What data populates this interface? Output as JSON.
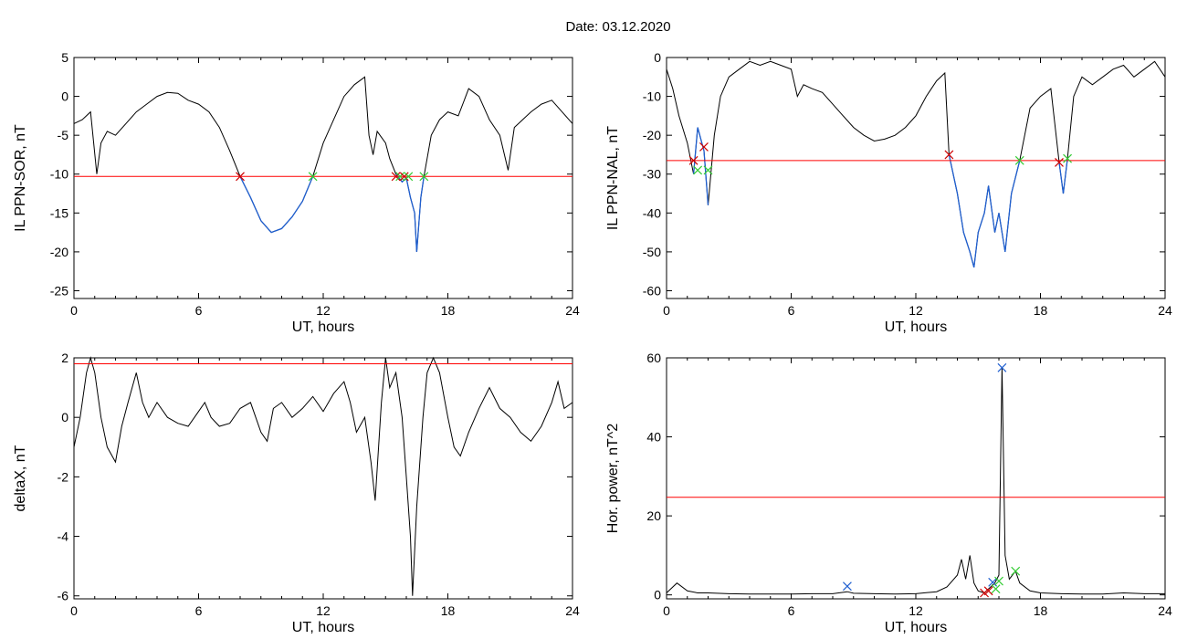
{
  "header": {
    "date_label": "Date:  03.12.2020"
  },
  "colors": {
    "trace": "#000000",
    "threshold": "#ff0000",
    "highlight": "#1f5fd0",
    "marker_start": "#cc0000",
    "marker_end": "#33cc33",
    "marker_peak": "#1f5fd0"
  },
  "chart_data": [
    {
      "type": "line",
      "xlabel": "UT, hours",
      "ylabel": "IL PPN-SOR, nT",
      "xlim": [
        0,
        24
      ],
      "ylim": [
        -26,
        5
      ],
      "xticks": [
        "0",
        "6",
        "12",
        "18",
        "24"
      ],
      "yticks": [
        "5",
        "0",
        "-5",
        "-10",
        "-15",
        "-20",
        "-25"
      ],
      "threshold": -10.3,
      "series": [
        {
          "points": [
            [
              0,
              -3.5
            ],
            [
              0.4,
              -3
            ],
            [
              0.8,
              -2
            ],
            [
              1.1,
              -10
            ],
            [
              1.3,
              -6
            ],
            [
              1.6,
              -4.5
            ],
            [
              2.0,
              -5
            ],
            [
              2.5,
              -3.5
            ],
            [
              3.0,
              -2
            ],
            [
              3.5,
              -1
            ],
            [
              4.0,
              0
            ],
            [
              4.5,
              0.5
            ],
            [
              5.0,
              0.4
            ],
            [
              5.5,
              -0.5
            ],
            [
              6.0,
              -1
            ],
            [
              6.5,
              -2
            ],
            [
              7.0,
              -4
            ],
            [
              7.5,
              -7
            ],
            [
              8.0,
              -10.3
            ],
            [
              8.5,
              -13
            ],
            [
              9.0,
              -16
            ],
            [
              9.5,
              -17.5
            ],
            [
              10.0,
              -17
            ],
            [
              10.5,
              -15.5
            ],
            [
              11.0,
              -13.5
            ],
            [
              11.5,
              -10.3
            ],
            [
              12.0,
              -6
            ],
            [
              12.5,
              -3
            ],
            [
              13.0,
              0
            ],
            [
              13.5,
              1.5
            ],
            [
              14.0,
              2.5
            ],
            [
              14.2,
              -5
            ],
            [
              14.4,
              -7.5
            ],
            [
              14.6,
              -4.5
            ],
            [
              15.0,
              -6
            ],
            [
              15.2,
              -8
            ],
            [
              15.5,
              -10
            ],
            [
              15.8,
              -11
            ],
            [
              16.0,
              -10.5
            ],
            [
              16.2,
              -13
            ],
            [
              16.4,
              -15
            ],
            [
              16.5,
              -20
            ],
            [
              16.7,
              -13
            ],
            [
              16.85,
              -10.3
            ],
            [
              17.2,
              -5
            ],
            [
              17.6,
              -3
            ],
            [
              18.0,
              -2
            ],
            [
              18.5,
              -2.5
            ],
            [
              19.0,
              1
            ],
            [
              19.5,
              0
            ],
            [
              20.0,
              -3
            ],
            [
              20.5,
              -5
            ],
            [
              20.9,
              -9.5
            ],
            [
              21.2,
              -4
            ],
            [
              21.6,
              -3
            ],
            [
              22.0,
              -2
            ],
            [
              22.5,
              -1
            ],
            [
              23.0,
              -0.5
            ],
            [
              23.5,
              -2
            ],
            [
              24.0,
              -3.5
            ]
          ]
        }
      ],
      "highlight_ranges": [
        [
          8.0,
          11.5
        ],
        [
          15.5,
          16.85
        ]
      ],
      "markers": [
        {
          "x": 8.0,
          "y": -10.3,
          "kind": "start"
        },
        {
          "x": 11.5,
          "y": -10.3,
          "kind": "end"
        },
        {
          "x": 15.5,
          "y": -10.3,
          "kind": "start"
        },
        {
          "x": 15.7,
          "y": -10.3,
          "kind": "end"
        },
        {
          "x": 15.9,
          "y": -10.3,
          "kind": "start"
        },
        {
          "x": 16.1,
          "y": -10.3,
          "kind": "end"
        },
        {
          "x": 16.85,
          "y": -10.3,
          "kind": "end"
        }
      ]
    },
    {
      "type": "line",
      "xlabel": "UT, hours",
      "ylabel": "IL PPN-NAL, nT",
      "xlim": [
        0,
        24
      ],
      "ylim": [
        -62,
        0
      ],
      "xticks": [
        "0",
        "6",
        "12",
        "18",
        "24"
      ],
      "yticks": [
        "0",
        "-10",
        "-20",
        "-30",
        "-40",
        "-50",
        "-60"
      ],
      "threshold": -26.5,
      "series": [
        {
          "points": [
            [
              0,
              -3
            ],
            [
              0.3,
              -8
            ],
            [
              0.6,
              -15
            ],
            [
              1.0,
              -22
            ],
            [
              1.3,
              -30
            ],
            [
              1.5,
              -18
            ],
            [
              1.8,
              -24
            ],
            [
              2.0,
              -38
            ],
            [
              2.3,
              -20
            ],
            [
              2.6,
              -10
            ],
            [
              3.0,
              -5
            ],
            [
              3.5,
              -3
            ],
            [
              4.0,
              -1
            ],
            [
              4.5,
              -2
            ],
            [
              5.0,
              -1
            ],
            [
              5.5,
              -2
            ],
            [
              6.0,
              -3
            ],
            [
              6.3,
              -10
            ],
            [
              6.6,
              -7
            ],
            [
              7.0,
              -8
            ],
            [
              7.5,
              -9
            ],
            [
              8.0,
              -12
            ],
            [
              8.5,
              -15
            ],
            [
              9.0,
              -18
            ],
            [
              9.5,
              -20
            ],
            [
              10.0,
              -21.5
            ],
            [
              10.5,
              -21
            ],
            [
              11.0,
              -20
            ],
            [
              11.5,
              -18
            ],
            [
              12.0,
              -15
            ],
            [
              12.5,
              -10
            ],
            [
              13.0,
              -6
            ],
            [
              13.4,
              -4
            ],
            [
              13.6,
              -25
            ],
            [
              14.0,
              -35
            ],
            [
              14.3,
              -45
            ],
            [
              14.6,
              -50
            ],
            [
              14.8,
              -54
            ],
            [
              15.0,
              -45
            ],
            [
              15.3,
              -40
            ],
            [
              15.5,
              -33
            ],
            [
              15.8,
              -45
            ],
            [
              16.0,
              -40
            ],
            [
              16.3,
              -50
            ],
            [
              16.6,
              -35
            ],
            [
              17.0,
              -26.5
            ],
            [
              17.5,
              -13
            ],
            [
              18.0,
              -10
            ],
            [
              18.5,
              -8
            ],
            [
              18.9,
              -27
            ],
            [
              19.1,
              -35
            ],
            [
              19.3,
              -26
            ],
            [
              19.6,
              -10
            ],
            [
              20.0,
              -5
            ],
            [
              20.5,
              -7
            ],
            [
              21.0,
              -5
            ],
            [
              21.5,
              -3
            ],
            [
              22.0,
              -2
            ],
            [
              22.5,
              -5
            ],
            [
              23.0,
              -3
            ],
            [
              23.5,
              -1
            ],
            [
              24.0,
              -5
            ]
          ]
        }
      ],
      "highlight_ranges": [
        [
          1.3,
          2.0
        ],
        [
          13.6,
          17.0
        ],
        [
          18.9,
          19.3
        ]
      ],
      "markers": [
        {
          "x": 1.3,
          "y": -26.5,
          "kind": "start"
        },
        {
          "x": 1.5,
          "y": -29,
          "kind": "end"
        },
        {
          "x": 1.8,
          "y": -23,
          "kind": "start"
        },
        {
          "x": 2.0,
          "y": -29,
          "kind": "end"
        },
        {
          "x": 13.6,
          "y": -25,
          "kind": "start"
        },
        {
          "x": 17.0,
          "y": -26.5,
          "kind": "end"
        },
        {
          "x": 18.9,
          "y": -27,
          "kind": "start"
        },
        {
          "x": 19.3,
          "y": -26,
          "kind": "end"
        }
      ]
    },
    {
      "type": "line",
      "xlabel": "UT, hours",
      "ylabel": "deltaX, nT",
      "xlim": [
        0,
        24
      ],
      "ylim": [
        -6.1,
        2
      ],
      "xticks": [
        "0",
        "6",
        "12",
        "18",
        "24"
      ],
      "yticks": [
        "2",
        "0",
        "-2",
        "-4",
        "-6"
      ],
      "threshold": 1.8,
      "series": [
        {
          "points": [
            [
              0,
              -1
            ],
            [
              0.3,
              0
            ],
            [
              0.6,
              1.5
            ],
            [
              0.8,
              2
            ],
            [
              1.0,
              1.5
            ],
            [
              1.3,
              0
            ],
            [
              1.6,
              -1
            ],
            [
              2.0,
              -1.5
            ],
            [
              2.3,
              -0.3
            ],
            [
              2.6,
              0.5
            ],
            [
              3.0,
              1.5
            ],
            [
              3.3,
              0.5
            ],
            [
              3.6,
              0
            ],
            [
              4.0,
              0.5
            ],
            [
              4.5,
              0
            ],
            [
              5.0,
              -0.2
            ],
            [
              5.5,
              -0.3
            ],
            [
              6.0,
              0.2
            ],
            [
              6.3,
              0.5
            ],
            [
              6.6,
              0
            ],
            [
              7.0,
              -0.3
            ],
            [
              7.5,
              -0.2
            ],
            [
              8.0,
              0.3
            ],
            [
              8.5,
              0.5
            ],
            [
              9.0,
              -0.5
            ],
            [
              9.3,
              -0.8
            ],
            [
              9.6,
              0.3
            ],
            [
              10.0,
              0.5
            ],
            [
              10.5,
              0
            ],
            [
              11.0,
              0.3
            ],
            [
              11.5,
              0.7
            ],
            [
              12.0,
              0.2
            ],
            [
              12.5,
              0.8
            ],
            [
              13.0,
              1.2
            ],
            [
              13.3,
              0.5
            ],
            [
              13.6,
              -0.5
            ],
            [
              14.0,
              0
            ],
            [
              14.3,
              -1.5
            ],
            [
              14.5,
              -2.8
            ],
            [
              14.8,
              0.5
            ],
            [
              15.0,
              2
            ],
            [
              15.2,
              1
            ],
            [
              15.5,
              1.5
            ],
            [
              15.8,
              0
            ],
            [
              16.0,
              -2
            ],
            [
              16.2,
              -4
            ],
            [
              16.3,
              -6
            ],
            [
              16.5,
              -3
            ],
            [
              16.8,
              0
            ],
            [
              17.0,
              1.5
            ],
            [
              17.3,
              2
            ],
            [
              17.6,
              1.5
            ],
            [
              18.0,
              0
            ],
            [
              18.3,
              -1
            ],
            [
              18.6,
              -1.3
            ],
            [
              19.0,
              -0.5
            ],
            [
              19.5,
              0.3
            ],
            [
              20.0,
              1
            ],
            [
              20.5,
              0.3
            ],
            [
              21.0,
              0
            ],
            [
              21.5,
              -0.5
            ],
            [
              22.0,
              -0.8
            ],
            [
              22.5,
              -0.3
            ],
            [
              23.0,
              0.5
            ],
            [
              23.3,
              1.2
            ],
            [
              23.6,
              0.3
            ],
            [
              24.0,
              0.5
            ]
          ]
        }
      ]
    },
    {
      "type": "line",
      "xlabel": "UT, hours",
      "ylabel": "Hor. power, nT^2",
      "xlim": [
        0,
        24
      ],
      "ylim": [
        -1,
        60
      ],
      "xticks": [
        "0",
        "6",
        "12",
        "18",
        "24"
      ],
      "yticks": [
        "0",
        "20",
        "40",
        "60"
      ],
      "threshold": 24.7,
      "series": [
        {
          "points": [
            [
              0,
              0.5
            ],
            [
              0.5,
              3
            ],
            [
              1.0,
              1
            ],
            [
              1.5,
              0.5
            ],
            [
              2.0,
              0.5
            ],
            [
              3.0,
              0.3
            ],
            [
              4.0,
              0.2
            ],
            [
              5.0,
              0.2
            ],
            [
              6.0,
              0.2
            ],
            [
              7.0,
              0.3
            ],
            [
              8.0,
              0.3
            ],
            [
              8.7,
              0.8
            ],
            [
              9.0,
              0.4
            ],
            [
              10.0,
              0.3
            ],
            [
              11.0,
              0.2
            ],
            [
              12.0,
              0.3
            ],
            [
              13.0,
              0.8
            ],
            [
              13.5,
              2
            ],
            [
              14.0,
              5
            ],
            [
              14.2,
              9
            ],
            [
              14.4,
              4
            ],
            [
              14.6,
              10
            ],
            [
              14.8,
              3
            ],
            [
              15.0,
              1
            ],
            [
              15.3,
              0.5
            ],
            [
              15.6,
              2
            ],
            [
              15.8,
              3
            ],
            [
              16.0,
              5
            ],
            [
              16.15,
              57.5
            ],
            [
              16.3,
              10
            ],
            [
              16.5,
              4
            ],
            [
              16.8,
              6
            ],
            [
              17.0,
              3
            ],
            [
              17.5,
              1
            ],
            [
              18.0,
              0.5
            ],
            [
              19.0,
              0.3
            ],
            [
              20.0,
              0.2
            ],
            [
              21.0,
              0.2
            ],
            [
              22.0,
              0.5
            ],
            [
              23.0,
              0.3
            ],
            [
              24.0,
              0.3
            ]
          ]
        }
      ],
      "markers": [
        {
          "x": 8.7,
          "y": 2.2,
          "kind": "peak"
        },
        {
          "x": 15.3,
          "y": 0.5,
          "kind": "start"
        },
        {
          "x": 15.5,
          "y": 1,
          "kind": "start"
        },
        {
          "x": 15.7,
          "y": 3.2,
          "kind": "peak"
        },
        {
          "x": 15.85,
          "y": 1.5,
          "kind": "end"
        },
        {
          "x": 16.0,
          "y": 3.5,
          "kind": "end"
        },
        {
          "x": 16.15,
          "y": 57.5,
          "kind": "peak"
        },
        {
          "x": 16.8,
          "y": 6,
          "kind": "end"
        }
      ]
    }
  ]
}
